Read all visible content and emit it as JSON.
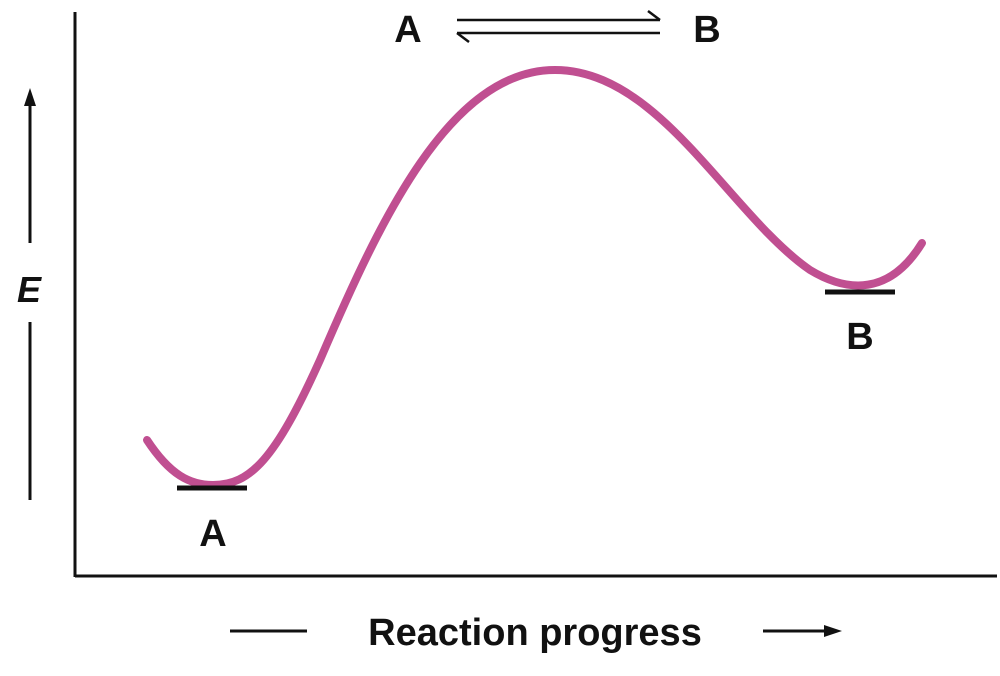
{
  "header": {
    "reactant": "A",
    "product": "B"
  },
  "axes": {
    "y_label": "E",
    "x_label": "Reaction progress"
  },
  "states": {
    "reactant_label": "A",
    "product_label": "B"
  },
  "colors": {
    "curve": "#c04f91",
    "ink": "#111111"
  }
}
